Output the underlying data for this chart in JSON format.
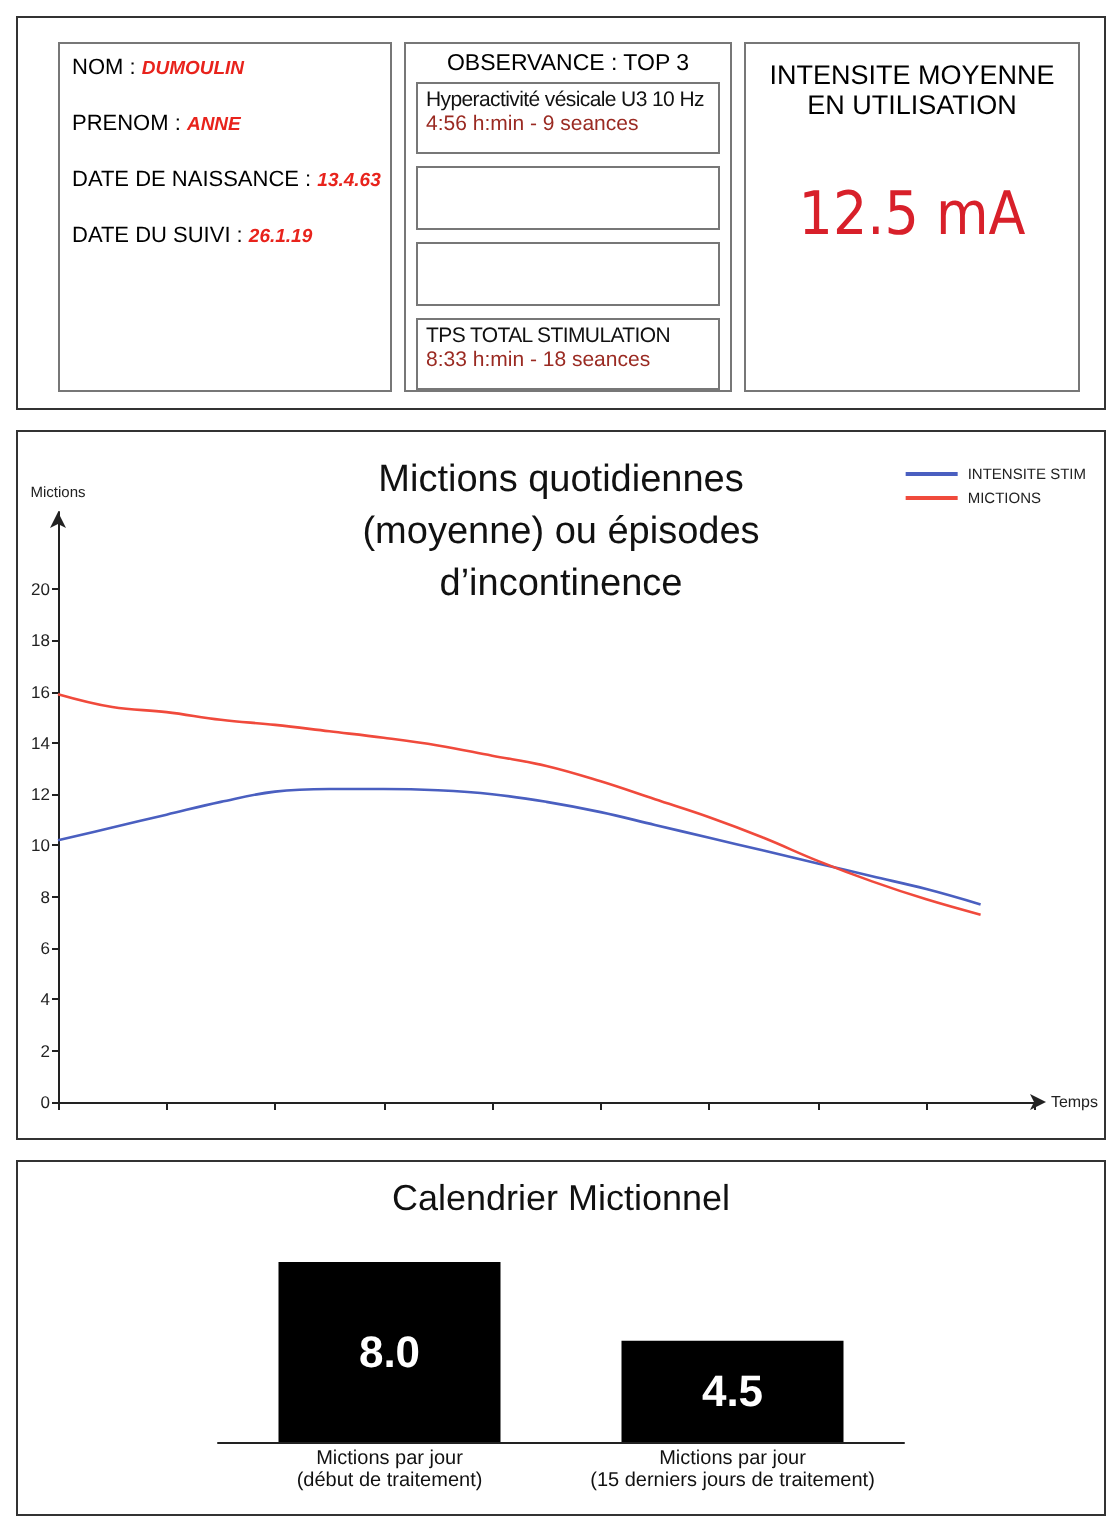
{
  "chart_data": [
    {
      "type": "other",
      "annotations": [
        "NOM : DUMOULIN",
        "PRENOM : ANNE",
        "DATE DE NAISSANCE : 13.4.63",
        "DATE DU SUIVI : 26.1.19",
        "OBSERVANCE : TOP 3",
        "Hyperactivité vésicale U3 10 Hz\n4:56 h:min - 9 seances",
        "TPS TOTAL STIMULATION\n8:33 h:min - 18 seances",
        "INTENSITE MOYENNE\nEN UTILISATION",
        "12.5 mA"
      ]
    },
    {
      "type": "line",
      "title": "Mictions quotidiennes\n(moyenne) ou épisodes\nd’incontinence",
      "ylabel": "Mictions",
      "xlabel": "Temps",
      "ylim": [
        0,
        23
      ],
      "categories": [
        null,
        null,
        null,
        null,
        null,
        null,
        null,
        null,
        null,
        null,
        null,
        null,
        null,
        null,
        null,
        null,
        null,
        null,
        null
      ],
      "yticks": [
        0,
        2,
        4,
        6,
        8,
        10,
        12,
        14,
        16,
        18,
        20
      ],
      "legend": "top right",
      "series": [
        {
          "name": "INTENSITE STIM",
          "color": "#4a5fc0",
          "values": [
            10.2,
            10.7,
            11.2,
            11.7,
            12.1,
            12.2,
            12.2,
            12.15,
            12.0,
            11.7,
            11.3,
            10.8,
            10.3,
            9.8,
            9.3,
            8.8,
            8.3,
            7.7,
            null
          ]
        },
        {
          "name": "MICTIONS",
          "color": "#f04a3c",
          "values": [
            15.9,
            15.4,
            15.2,
            14.9,
            14.7,
            14.45,
            14.2,
            13.9,
            13.5,
            13.1,
            12.5,
            11.8,
            11.1,
            10.3,
            9.4,
            8.6,
            7.9,
            7.3,
            null
          ]
        }
      ]
    },
    {
      "type": "bar",
      "title": "Calendrier Mictionnel",
      "categories": [
        "Mictions par jour\n(début de traitement)",
        "Mictions par jour\n(15 derniers jours de traitement)"
      ],
      "values": [
        8.0,
        4.5
      ],
      "value_labels": [
        "8.0",
        "4.5"
      ],
      "color": "#000000"
    }
  ]
}
